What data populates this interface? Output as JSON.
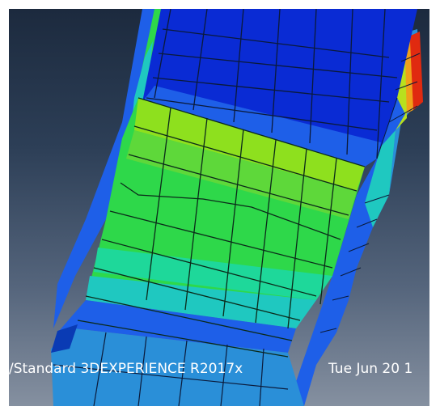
{
  "viewport": {
    "background_top": "#1c2a3e",
    "background_bottom": "#8590a0",
    "status_line": {
      "version": "/Standard 3DEXPERIENCE R2017x",
      "timestamp": "Tue Jun 20 1"
    }
  },
  "contour_colors": {
    "blue": "#0a2bd4",
    "mid_blue": "#1e5fe8",
    "light_blue": "#2a8fd8",
    "cyan": "#1fc8c0",
    "green_cyan": "#1ed89a",
    "green": "#2ed84a",
    "yellow_green": "#8ee01e",
    "yellow": "#e0e01e",
    "orange": "#f0a01a",
    "red": "#e02a10"
  }
}
